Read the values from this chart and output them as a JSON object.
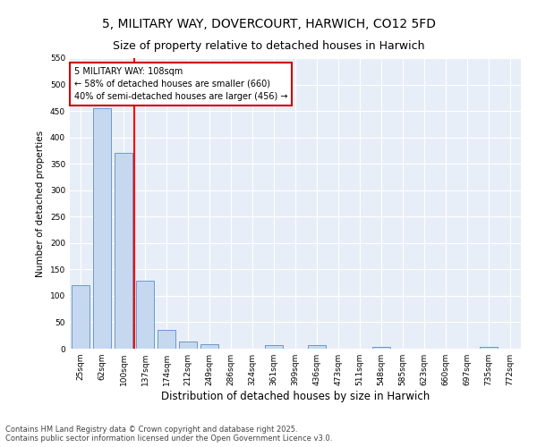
{
  "title1": "5, MILITARY WAY, DOVERCOURT, HARWICH, CO12 5FD",
  "title2": "Size of property relative to detached houses in Harwich",
  "xlabel": "Distribution of detached houses by size in Harwich",
  "ylabel": "Number of detached properties",
  "categories": [
    "25sqm",
    "62sqm",
    "100sqm",
    "137sqm",
    "174sqm",
    "212sqm",
    "249sqm",
    "286sqm",
    "324sqm",
    "361sqm",
    "399sqm",
    "436sqm",
    "473sqm",
    "511sqm",
    "548sqm",
    "585sqm",
    "623sqm",
    "660sqm",
    "697sqm",
    "735sqm",
    "772sqm"
  ],
  "values": [
    120,
    455,
    370,
    128,
    35,
    13,
    8,
    0,
    0,
    6,
    0,
    6,
    0,
    0,
    4,
    0,
    0,
    0,
    0,
    4,
    0
  ],
  "bar_color": "#c5d8f0",
  "bar_edge_color": "#5a8fc2",
  "red_line_x": 2.5,
  "annotation_line1": "5 MILITARY WAY: 108sqm",
  "annotation_line2": "← 58% of detached houses are smaller (660)",
  "annotation_line3": "40% of semi-detached houses are larger (456) →",
  "annotation_box_color": "#ffffff",
  "annotation_box_edge": "#cc0000",
  "footer1": "Contains HM Land Registry data © Crown copyright and database right 2025.",
  "footer2": "Contains public sector information licensed under the Open Government Licence v3.0.",
  "ylim": [
    0,
    550
  ],
  "yticks": [
    0,
    50,
    100,
    150,
    200,
    250,
    300,
    350,
    400,
    450,
    500,
    550
  ],
  "bg_color": "#e8eef7",
  "fig_bg": "#ffffff",
  "title_fontsize": 10,
  "subtitle_fontsize": 9,
  "bar_width": 0.8
}
